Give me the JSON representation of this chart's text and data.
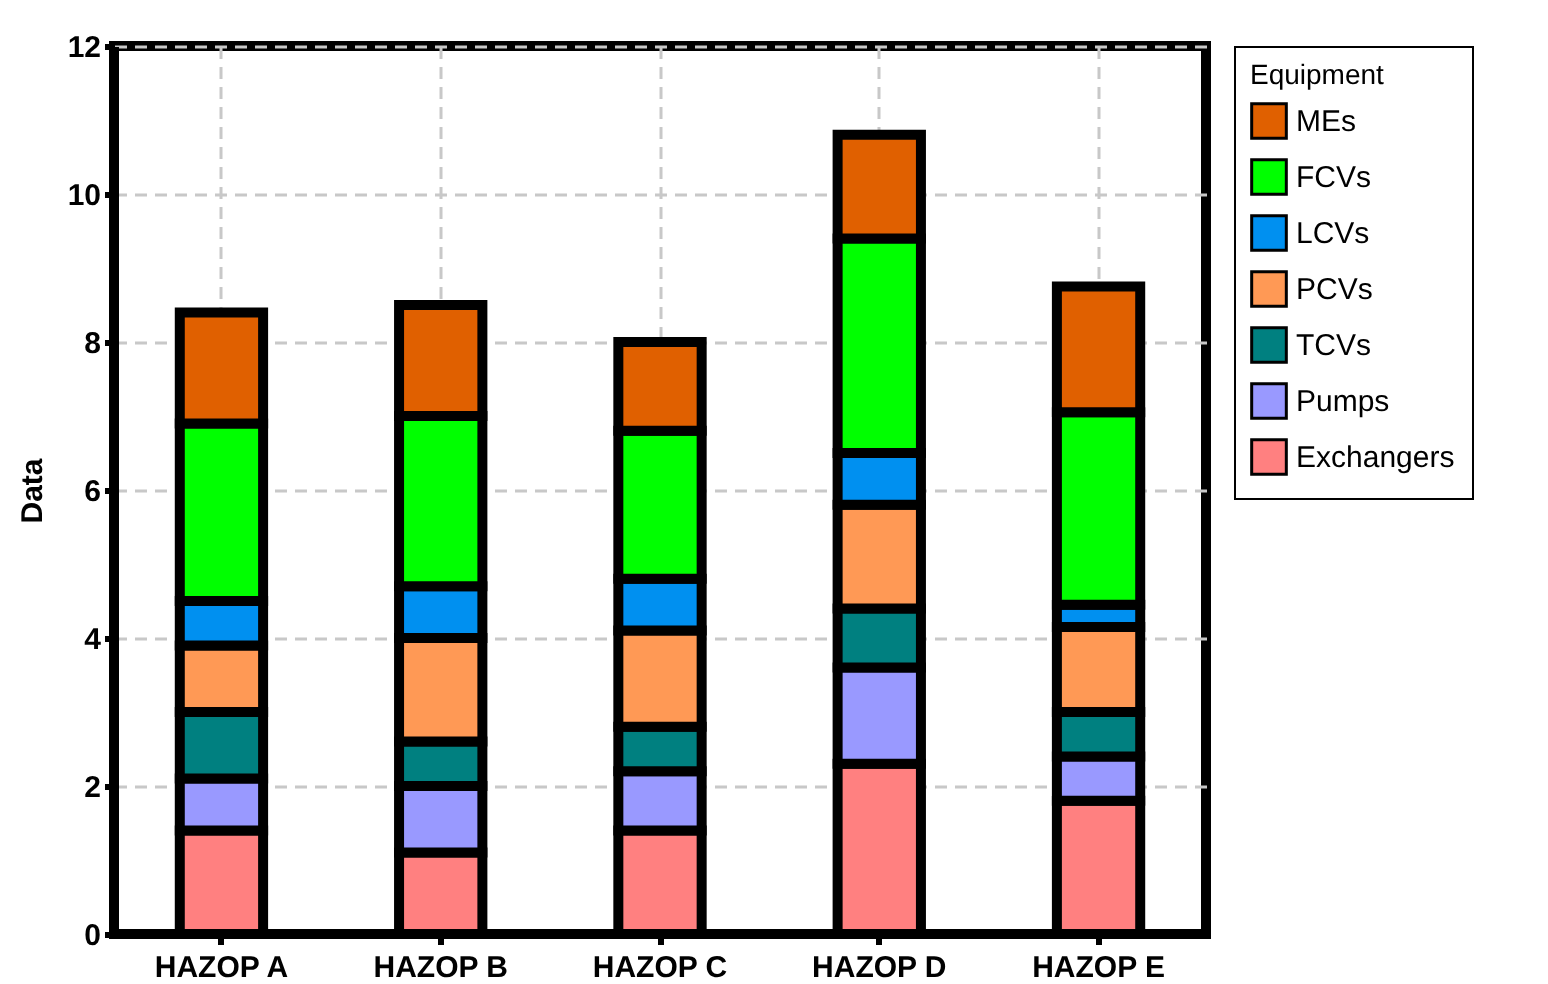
{
  "chart_data": {
    "type": "bar",
    "stacked": true,
    "ylabel": "Data",
    "legend_title": "Equipment",
    "legend": "top right",
    "categories": [
      "HAZOP A",
      "HAZOP B",
      "HAZOP C",
      "HAZOP D",
      "HAZOP E"
    ],
    "series": [
      {
        "name": "Exchangers",
        "color": "#ff8080",
        "values": [
          1.4,
          1.1,
          1.4,
          2.3,
          1.8
        ]
      },
      {
        "name": "Pumps",
        "color": "#9999ff",
        "values": [
          0.7,
          0.9,
          0.8,
          1.3,
          0.6
        ]
      },
      {
        "name": "TCVs",
        "color": "#008080",
        "values": [
          0.9,
          0.6,
          0.6,
          0.8,
          0.6
        ]
      },
      {
        "name": "PCVs",
        "color": "#ff9955",
        "values": [
          0.9,
          1.4,
          1.3,
          1.4,
          1.15
        ]
      },
      {
        "name": "LCVs",
        "color": "#0090f0",
        "values": [
          0.6,
          0.7,
          0.7,
          0.7,
          0.3
        ]
      },
      {
        "name": "FCVs",
        "color": "#00ff00",
        "values": [
          2.4,
          2.3,
          2.0,
          2.9,
          2.6
        ]
      },
      {
        "name": "MEs",
        "color": "#e06000",
        "values": [
          1.5,
          1.5,
          1.2,
          1.4,
          1.7
        ]
      }
    ],
    "ylim": [
      0,
      12
    ],
    "yticks": [
      0,
      2,
      4,
      6,
      8,
      10,
      12
    ],
    "grid": true
  }
}
